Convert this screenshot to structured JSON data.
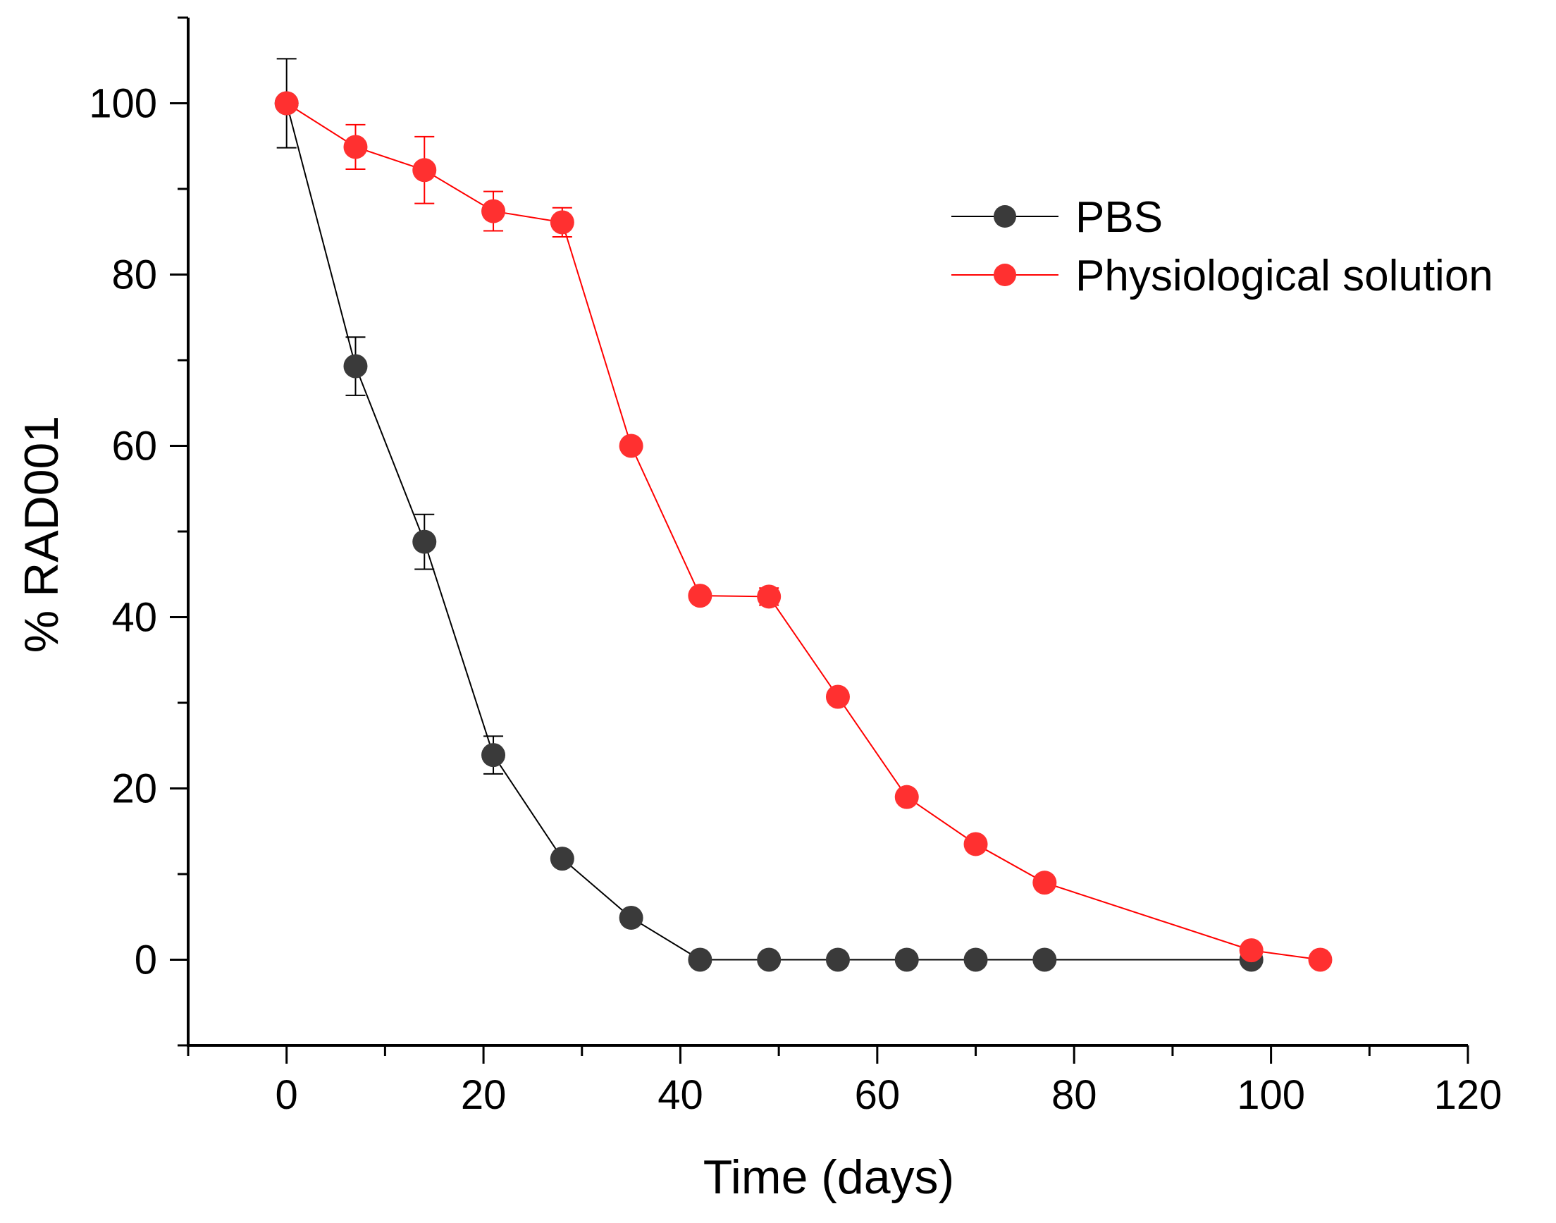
{
  "chart_data": {
    "type": "line",
    "title": "",
    "xlabel": "Time (days)",
    "ylabel": "% RAD001",
    "xlim": [
      -10,
      120
    ],
    "ylim": [
      -10,
      110
    ],
    "xticks": [
      0,
      20,
      40,
      60,
      80,
      100,
      120
    ],
    "yticks": [
      0,
      20,
      40,
      60,
      80,
      100
    ],
    "xtick_labels": [
      "0",
      "20",
      "40",
      "60",
      "80",
      "100",
      "120"
    ],
    "ytick_labels": [
      "0",
      "20",
      "40",
      "60",
      "80",
      "100"
    ],
    "x_minor_step": 10,
    "y_minor_step": 10,
    "grid": false,
    "legend_position": "top-right",
    "series": [
      {
        "name": "PBS",
        "color": "#3a3a3a",
        "line_color": "#000000",
        "x": [
          0,
          7,
          14,
          21,
          28,
          35,
          42,
          49,
          56,
          63,
          70,
          77,
          98
        ],
        "y": [
          100,
          69.3,
          48.8,
          23.9,
          11.8,
          4.9,
          0,
          0,
          0,
          0,
          0,
          0,
          0
        ],
        "error": [
          5.2,
          3.4,
          3.2,
          2.2,
          0,
          0,
          0,
          0,
          0,
          0,
          0,
          0,
          0
        ]
      },
      {
        "name": "Physiological solution",
        "color": "#ff3030",
        "line_color": "#ff0000",
        "x": [
          0,
          7,
          14,
          21,
          28,
          35,
          42,
          49,
          56,
          63,
          70,
          77,
          98,
          105
        ],
        "y": [
          100,
          94.9,
          92.2,
          87.4,
          86.1,
          60.0,
          42.5,
          42.4,
          30.7,
          19.0,
          13.5,
          9.0,
          1.1,
          0
        ],
        "error": [
          0,
          2.6,
          3.9,
          2.3,
          1.7,
          0,
          0,
          1.0,
          0,
          0,
          0,
          0,
          0,
          0
        ]
      }
    ]
  }
}
